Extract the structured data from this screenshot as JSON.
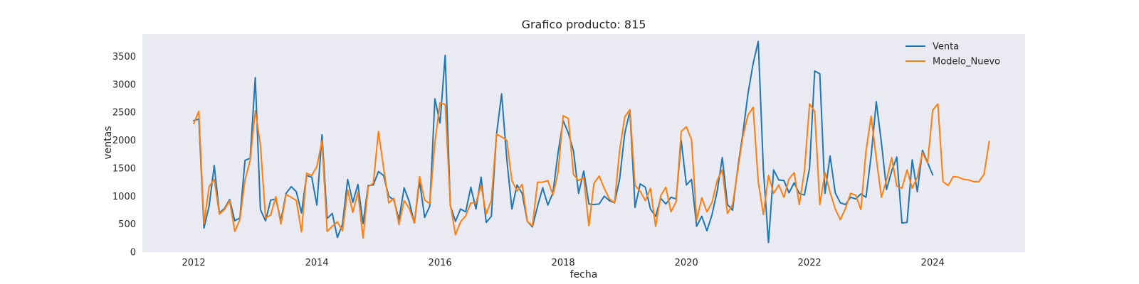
{
  "chart_data": {
    "type": "line",
    "title": "Grafico producto: 815",
    "xlabel": "fecha",
    "ylabel": "ventas",
    "xlim": [
      "2011-03-01",
      "2025-07-01"
    ],
    "ylim": [
      0,
      3900
    ],
    "x_ticks": [
      "2012",
      "2014",
      "2016",
      "2018",
      "2020",
      "2022",
      "2024"
    ],
    "y_ticks": [
      0,
      500,
      1000,
      1500,
      2000,
      2500,
      3000,
      3500
    ],
    "grid": false,
    "legend_position": "top-right",
    "series": [
      {
        "name": "Venta",
        "color": "#1f77b4",
        "start": "2012-01",
        "values": [
          2350,
          2380,
          430,
          820,
          1550,
          700,
          780,
          940,
          560,
          610,
          1640,
          1680,
          3120,
          760,
          560,
          930,
          950,
          560,
          1050,
          1170,
          1080,
          700,
          1370,
          1340,
          840,
          2100,
          600,
          690,
          260,
          500,
          1300,
          890,
          1210,
          510,
          1190,
          1200,
          1440,
          1370,
          1000,
          930,
          580,
          1150,
          900,
          520,
          1270,
          620,
          820,
          2740,
          2310,
          3520,
          830,
          550,
          770,
          720,
          1160,
          770,
          1340,
          530,
          640,
          2100,
          2830,
          1670,
          770,
          1200,
          1050,
          550,
          450,
          820,
          1150,
          840,
          1060,
          1780,
          2350,
          2130,
          1810,
          1050,
          1450,
          860,
          850,
          860,
          1000,
          920,
          880,
          1310,
          2130,
          2520,
          800,
          1220,
          1160,
          770,
          640,
          960,
          860,
          980,
          950,
          1990,
          1200,
          1300,
          460,
          640,
          380,
          670,
          1090,
          1690,
          850,
          750,
          1500,
          2120,
          2830,
          3370,
          3770,
          1480,
          170,
          1470,
          1290,
          1280,
          1060,
          1240,
          1050,
          1020,
          1500,
          3240,
          3190,
          1050,
          1720,
          1060,
          880,
          850,
          980,
          950,
          1040,
          980,
          1720,
          2690,
          1960,
          1120,
          1450,
          1700,
          520,
          530,
          1650,
          1080,
          1820,
          1600,
          1380
        ]
      },
      {
        "name": "Modelo_Nuevo",
        "color": "#ff7f0e",
        "start": "2012-01",
        "values": [
          2300,
          2520,
          510,
          1170,
          1300,
          680,
          760,
          920,
          370,
          580,
          1290,
          1640,
          2530,
          1920,
          610,
          660,
          990,
          500,
          1030,
          980,
          920,
          360,
          1410,
          1370,
          1530,
          1990,
          370,
          460,
          540,
          380,
          1110,
          710,
          1070,
          250,
          1170,
          1230,
          2160,
          1510,
          880,
          960,
          490,
          920,
          780,
          520,
          1350,
          930,
          870,
          1960,
          2670,
          2640,
          860,
          310,
          540,
          650,
          880,
          880,
          1190,
          680,
          930,
          2110,
          2060,
          2000,
          1280,
          1090,
          1210,
          550,
          470,
          1250,
          1250,
          1280,
          1020,
          1430,
          2440,
          2390,
          1390,
          1280,
          1330,
          470,
          1230,
          1360,
          1140,
          950,
          880,
          1830,
          2420,
          2550,
          1190,
          1090,
          920,
          1140,
          460,
          1010,
          1160,
          720,
          900,
          2160,
          2240,
          2010,
          570,
          970,
          720,
          890,
          1280,
          1470,
          690,
          850,
          1460,
          2060,
          2450,
          2590,
          1260,
          670,
          1370,
          1050,
          1200,
          980,
          1310,
          1420,
          850,
          1450,
          2650,
          2520,
          850,
          1420,
          1070,
          770,
          580,
          780,
          1050,
          1020,
          760,
          1810,
          2430,
          1680,
          980,
          1290,
          1690,
          1180,
          1140,
          1470,
          1140,
          1340,
          1780,
          1590,
          2540,
          2650,
          1260,
          1190,
          1350,
          1340,
          1300,
          1290,
          1260,
          1260,
          1390,
          1980
        ]
      }
    ]
  }
}
